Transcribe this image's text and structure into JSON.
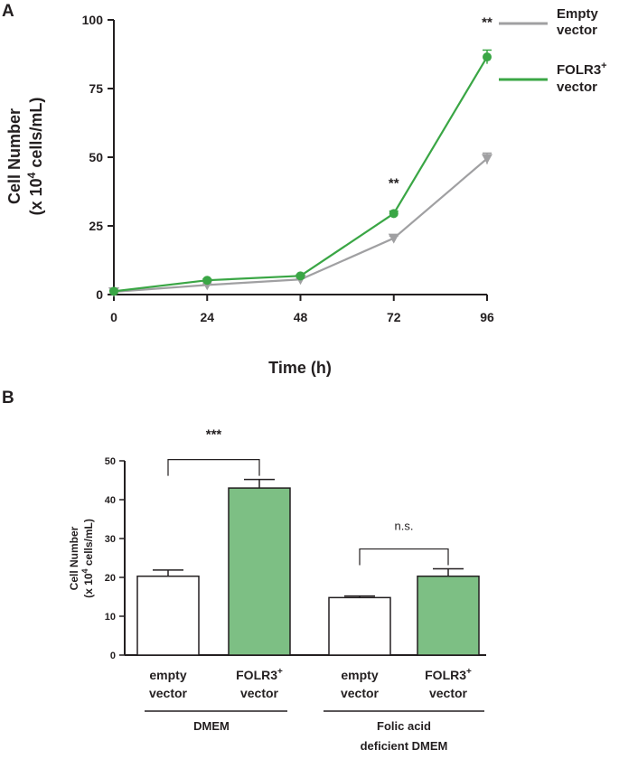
{
  "panel_a": {
    "label": "A"
  },
  "panel_b": {
    "label": "B"
  },
  "chart_data": [
    {
      "type": "line",
      "panel": "A",
      "ylabel_line1": "Cell Number",
      "ylabel_line2_prefix": "(x 10",
      "ylabel_line2_sup": "4",
      "ylabel_line2_suffix": " cells/mL)",
      "xlabel": "Time (h)",
      "x": [
        0,
        24,
        48,
        72,
        96
      ],
      "xticks": [
        "0",
        "24",
        "48",
        "72",
        "96"
      ],
      "yticks": [
        "0",
        "25",
        "50",
        "75",
        "100"
      ],
      "xlim": [
        0,
        96
      ],
      "ylim": [
        0,
        100
      ],
      "series": [
        {
          "name": "Empty vector",
          "name_line1": "Empty",
          "name_line2": "vector",
          "color": "#a0a0a2",
          "marker": "triangle-down",
          "values": [
            1,
            3.5,
            5.5,
            20.5,
            49.5
          ],
          "errors": [
            0.3,
            0.4,
            0.4,
            0.8,
            2
          ]
        },
        {
          "name": "FOLR3+ vector",
          "name_line1": "FOLR3",
          "name_line1_sup": "+",
          "name_line2": "vector",
          "color": "#3aa645",
          "marker": "circle",
          "values": [
            1.2,
            5.2,
            6.8,
            29.5,
            86.5
          ],
          "errors": [
            0.3,
            0.5,
            0.4,
            0.9,
            2.5
          ]
        }
      ],
      "annotations": [
        {
          "x": 72,
          "text": "**"
        },
        {
          "x": 96,
          "text": "**"
        }
      ]
    },
    {
      "type": "bar",
      "panel": "B",
      "ylabel_line1": "Cell Number",
      "ylabel_line2_prefix": "(x 10",
      "ylabel_line2_sup": "4",
      "ylabel_line2_suffix": " cells/mL)",
      "ylim": [
        0,
        50
      ],
      "yticks": [
        "0",
        "10",
        "20",
        "30",
        "40",
        "50"
      ],
      "bars": [
        {
          "line1": "empty",
          "line2": "vector",
          "value": 20.3,
          "error": 1.6,
          "color": "#ffffff"
        },
        {
          "line1": "FOLR3",
          "line1_sup": "+",
          "line2": "vector",
          "value": 43.0,
          "error": 2.2,
          "color": "#7dbf84"
        },
        {
          "line1": "empty",
          "line2": "vector",
          "value": 14.8,
          "error": 0.4,
          "color": "#ffffff"
        },
        {
          "line1": "FOLR3",
          "line1_sup": "+",
          "line2": "vector",
          "value": 20.3,
          "error": 1.9,
          "color": "#7dbf84"
        }
      ],
      "groups": [
        {
          "line1": "DMEM",
          "line2": ""
        },
        {
          "line1": "Folic acid",
          "line2": "deficient DMEM"
        }
      ],
      "comparisons": [
        {
          "from": 0,
          "to": 1,
          "text": "***"
        },
        {
          "from": 2,
          "to": 3,
          "text": "n.s."
        }
      ]
    }
  ]
}
